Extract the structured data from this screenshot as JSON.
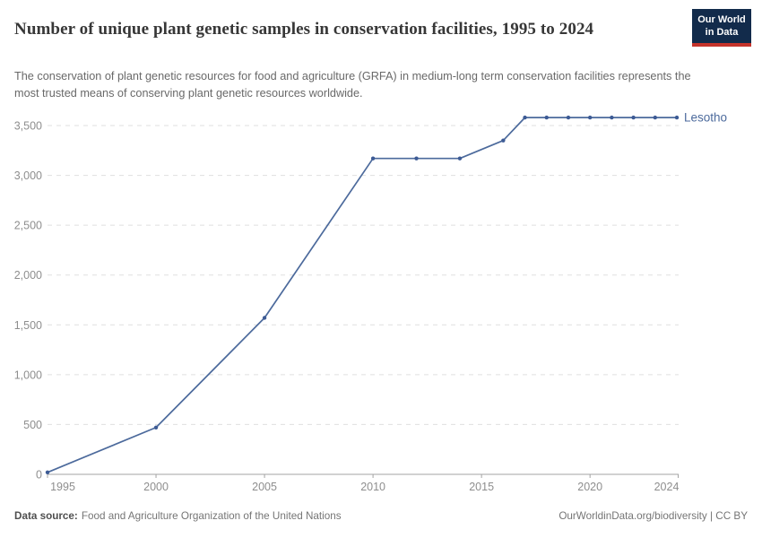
{
  "header": {
    "title": "Number of unique plant genetic samples in conservation facilities, 1995 to 2024",
    "subtitle": "The conservation of plant genetic resources for food and agriculture (GRFA) in medium-long term conservation facilities represents the most trusted means of conserving plant genetic resources worldwide.",
    "logo": {
      "line1": "Our World",
      "line2": "in Data"
    }
  },
  "footer": {
    "source_label": "Data source:",
    "source_value": "Food and Agriculture Organization of the United Nations",
    "credit": "OurWorldinData.org/biodiversity | CC BY"
  },
  "colors": {
    "series": "#4C6A9C",
    "marker": "#3D5B95",
    "grid": "#DFDFDF",
    "axis": "#A3A3A3",
    "axis_text": "#8E8E8E",
    "logo_navy": "#122B4B",
    "logo_red": "#C5332B"
  },
  "chart_data": {
    "type": "line",
    "title": "Number of unique plant genetic samples in conservation facilities, 1995 to 2024",
    "xlabel": "",
    "ylabel": "",
    "x": [
      1995,
      2000,
      2005,
      2010,
      2012,
      2014,
      2016,
      2017,
      2018,
      2019,
      2020,
      2021,
      2022,
      2023,
      2024
    ],
    "series": [
      {
        "name": "Lesotho",
        "values": [
          20,
          470,
          1570,
          3170,
          3170,
          3170,
          3350,
          3580,
          3580,
          3580,
          3580,
          3580,
          3580,
          3580,
          3580
        ]
      }
    ],
    "x_ticks": [
      1995,
      2000,
      2005,
      2010,
      2015,
      2020,
      2024
    ],
    "y_ticks": [
      0,
      500,
      1000,
      1500,
      2000,
      2500,
      3000,
      3500
    ],
    "xlim": [
      1995,
      2024
    ],
    "ylim": [
      0,
      3650
    ],
    "grid": true,
    "grid_style": "dashed",
    "legend_position": "end-of-line"
  }
}
